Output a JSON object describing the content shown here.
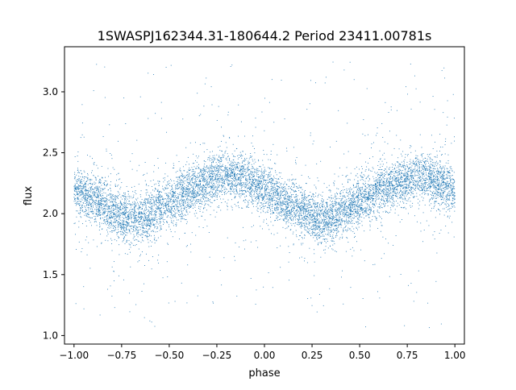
{
  "chart_data": {
    "type": "scatter",
    "title": "1SWASPJ162344.31-180644.2 Period 23411.00781s",
    "xlabel": "phase",
    "ylabel": "flux",
    "xlim": [
      -1.05,
      1.05
    ],
    "ylim": [
      0.93,
      3.37
    ],
    "x_ticks": [
      -1.0,
      -0.75,
      -0.5,
      -0.25,
      0.0,
      0.25,
      0.5,
      0.75,
      1.0
    ],
    "x_tick_labels": [
      "−1.00",
      "−0.75",
      "−0.50",
      "−0.25",
      "0.00",
      "0.25",
      "0.50",
      "0.75",
      "1.00"
    ],
    "y_ticks": [
      1.0,
      1.5,
      2.0,
      2.5,
      3.0
    ],
    "y_tick_labels": [
      "1.0",
      "1.5",
      "2.0",
      "2.5",
      "3.0"
    ],
    "grid": false,
    "legend": "none",
    "marker_color": "#1f77b4",
    "series": [
      {
        "phase_range": [
          -1.0,
          1.0
        ],
        "trend": {
          "phase": [
            -1.0,
            -0.875,
            -0.75,
            -0.7,
            -0.625,
            -0.5,
            -0.375,
            -0.25,
            -0.2,
            -0.125,
            0.0,
            0.125,
            0.25,
            0.3,
            0.375,
            0.5,
            0.625,
            0.75,
            0.8,
            0.875,
            1.0
          ],
          "flux": [
            2.2,
            2.1,
            1.98,
            1.95,
            1.98,
            2.08,
            2.2,
            2.3,
            2.31,
            2.3,
            2.2,
            2.08,
            1.98,
            1.95,
            1.98,
            2.1,
            2.2,
            2.28,
            2.3,
            2.28,
            2.2
          ]
        },
        "flux_scatter_core": 0.1,
        "flux_outlier_range": [
          1.05,
          3.25
        ]
      }
    ]
  }
}
